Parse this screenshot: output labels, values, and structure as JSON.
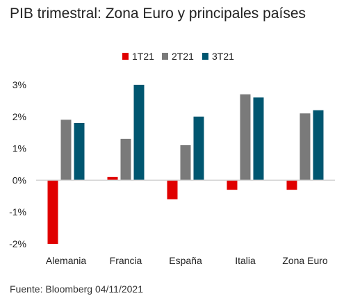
{
  "title": "PIB trimestral: Zona Euro y principales países",
  "source": "Fuente: Bloomberg  04/11/2021",
  "chart_data": {
    "type": "bar",
    "categories": [
      "Alemania",
      "Francia",
      "España",
      "Italia",
      "Zona Euro"
    ],
    "series": [
      {
        "name": "1T21",
        "color": "#e00000",
        "values": [
          -2.0,
          0.1,
          -0.6,
          -0.3,
          -0.3
        ]
      },
      {
        "name": "2T21",
        "color": "#7a7a7a",
        "values": [
          1.9,
          1.3,
          1.1,
          2.7,
          2.1
        ]
      },
      {
        "name": "3T21",
        "color": "#005670",
        "values": [
          1.8,
          3.0,
          2.0,
          2.6,
          2.2
        ]
      }
    ],
    "yticks": [
      "3%",
      "2%",
      "1%",
      "0%",
      "-1%",
      "-2%"
    ],
    "ytick_values": [
      3,
      2,
      1,
      0,
      -1,
      -2
    ],
    "ylim": [
      -2,
      3
    ],
    "legend_position": "top-center",
    "grid": false
  }
}
